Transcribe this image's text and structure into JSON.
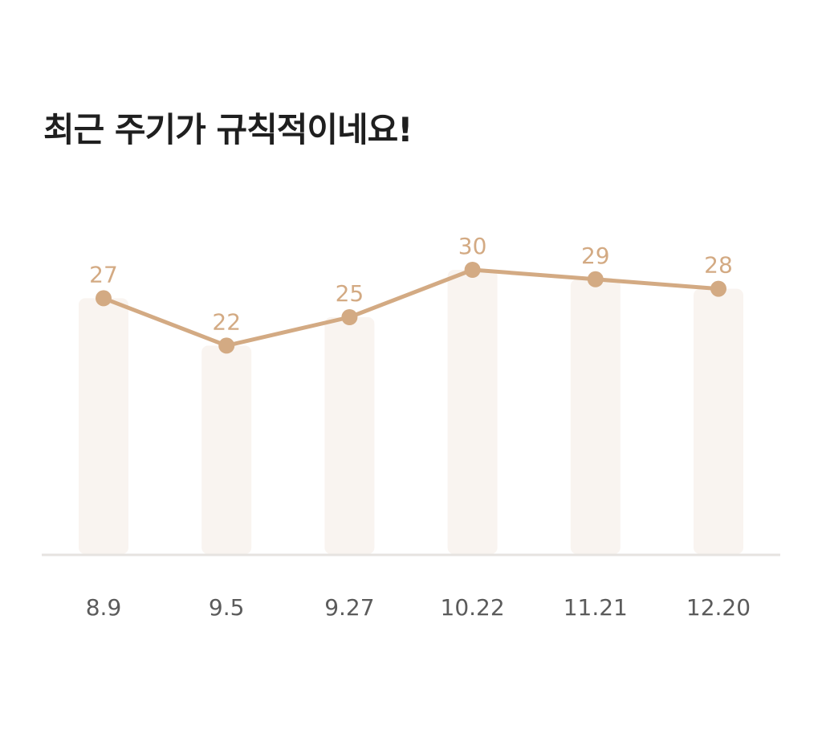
{
  "title": "최근 주기가 규칙적이네요!",
  "colors": {
    "line": "#d3aa83",
    "point": "#d3aa83",
    "bar": "#f9f4f0",
    "axis": "#e6e3e0",
    "value_label": "#d3aa83",
    "tick_label": "#5b5b5b",
    "title": "#1f1f1f"
  },
  "chart_data": {
    "type": "bar",
    "categories": [
      "8.9",
      "9.5",
      "9.27",
      "10.22",
      "11.21",
      "12.20"
    ],
    "values": [
      27,
      22,
      25,
      30,
      29,
      28
    ],
    "overlay": "line",
    "data_labels": [
      "27",
      "22",
      "25",
      "30",
      "29",
      "28"
    ],
    "title": "최근 주기가 규칙적이네요!",
    "xlabel": "",
    "ylabel": "",
    "ylim": [
      0,
      30
    ],
    "grid": false,
    "legend": "none"
  }
}
